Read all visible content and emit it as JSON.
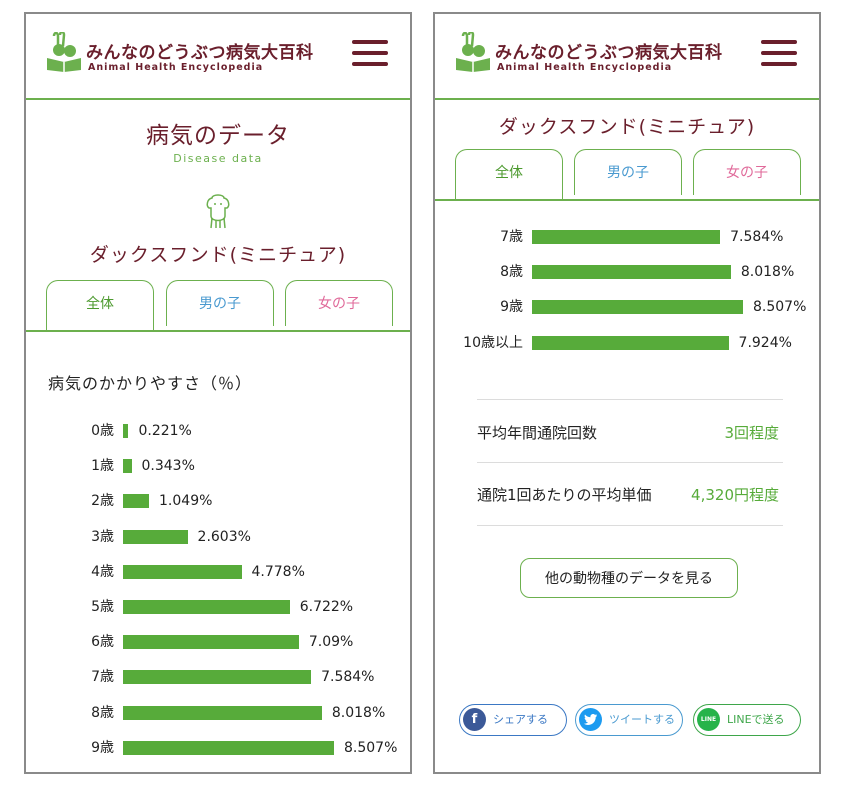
{
  "header": {
    "site_title": "みんなのどうぶつ病気大百科",
    "site_subtitle": "Animal Health Encyclopedia",
    "logo_icon": "rabbit-dog-book-icon",
    "menu_icon": "hamburger-icon"
  },
  "left": {
    "page_title": "病気のデータ",
    "page_subtitle": "Disease data",
    "breed_icon": "dog-outline-icon",
    "breed": "ダックスフンド(ミニチュア)",
    "tabs": [
      {
        "label": "全体"
      },
      {
        "label": "男の子"
      },
      {
        "label": "女の子"
      }
    ],
    "section_title": "病気のかかりやすさ（％）"
  },
  "right": {
    "breed": "ダックスフンド(ミニチュア)",
    "tabs": [
      {
        "label": "全体"
      },
      {
        "label": "男の子"
      },
      {
        "label": "女の子"
      }
    ],
    "stats": [
      {
        "label": "平均年間通院回数",
        "value": "3回程度"
      },
      {
        "label": "通院1回あたりの平均単価",
        "value": "4,320円程度"
      }
    ],
    "other_button": "他の動物種のデータを見る",
    "share": {
      "facebook": "シェアする",
      "twitter": "ツイートする",
      "line_icon_text": "LINE",
      "line": "LINEで送る"
    }
  },
  "chart_data": [
    {
      "type": "bar",
      "orientation": "horizontal",
      "title": "病気のかかりやすさ（％）",
      "categories": [
        "0歳",
        "1歳",
        "2歳",
        "3歳",
        "4歳",
        "5歳",
        "6歳",
        "7歳",
        "8歳",
        "9歳"
      ],
      "values": [
        0.221,
        0.343,
        1.049,
        2.603,
        4.778,
        6.722,
        7.09,
        7.584,
        8.018,
        8.507
      ],
      "value_labels": [
        "0.221%",
        "0.343%",
        "1.049%",
        "2.603%",
        "4.778%",
        "6.722%",
        "7.09%",
        "7.584%",
        "8.018%",
        "8.507%"
      ],
      "xlim": [
        0,
        8.507
      ],
      "bar_color": "#57ab3a"
    },
    {
      "type": "bar",
      "orientation": "horizontal",
      "categories": [
        "7歳",
        "8歳",
        "9歳",
        "10歳以上"
      ],
      "values": [
        7.584,
        8.018,
        8.507,
        7.924
      ],
      "value_labels": [
        "7.584%",
        "8.018%",
        "8.507%",
        "7.924%"
      ],
      "xlim": [
        0,
        8.507
      ],
      "bar_color": "#57ab3a"
    }
  ]
}
